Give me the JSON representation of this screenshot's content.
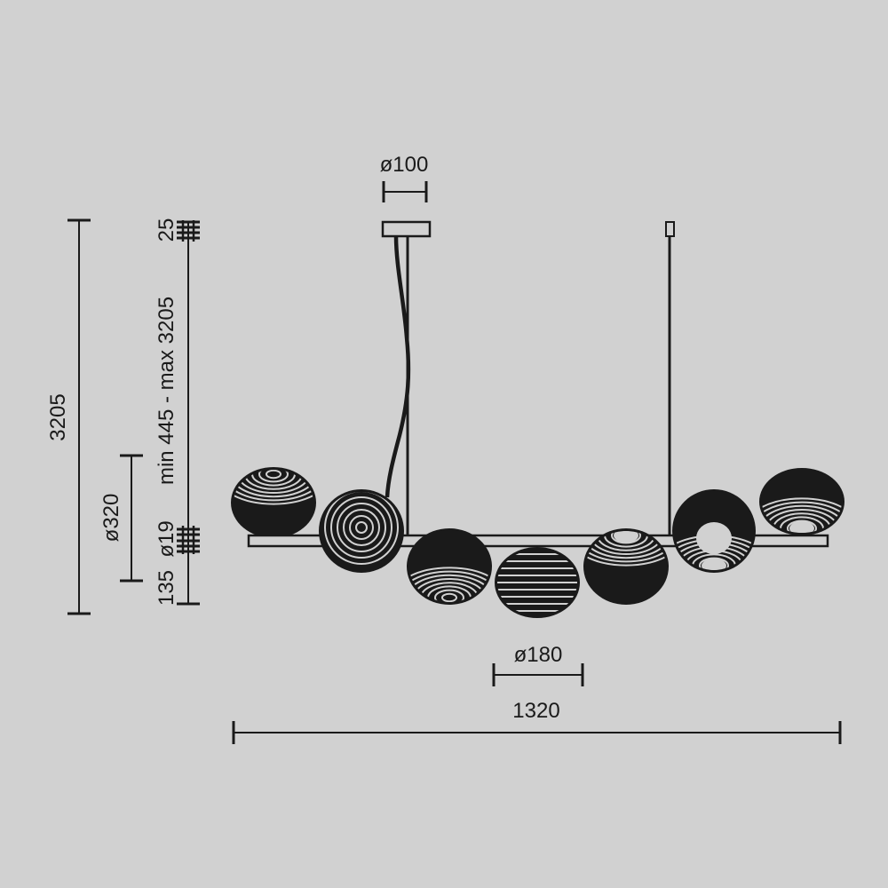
{
  "drawing": {
    "subject": "pendant-chandelier-technical-drawing",
    "ink_color": "#1a1a1a",
    "background_color": "#d1d1d1",
    "globe_count": 7
  },
  "dimensions": {
    "canopy_diameter": "ø100",
    "total_height": "3205",
    "globe_large_diameter": "ø320",
    "canopy_height": "25",
    "suspension_range": "min 445 - max 3205",
    "bar_diameter": "ø19",
    "bottom_drop": "135",
    "globe_small_diameter": "ø180",
    "total_width": "1320"
  }
}
